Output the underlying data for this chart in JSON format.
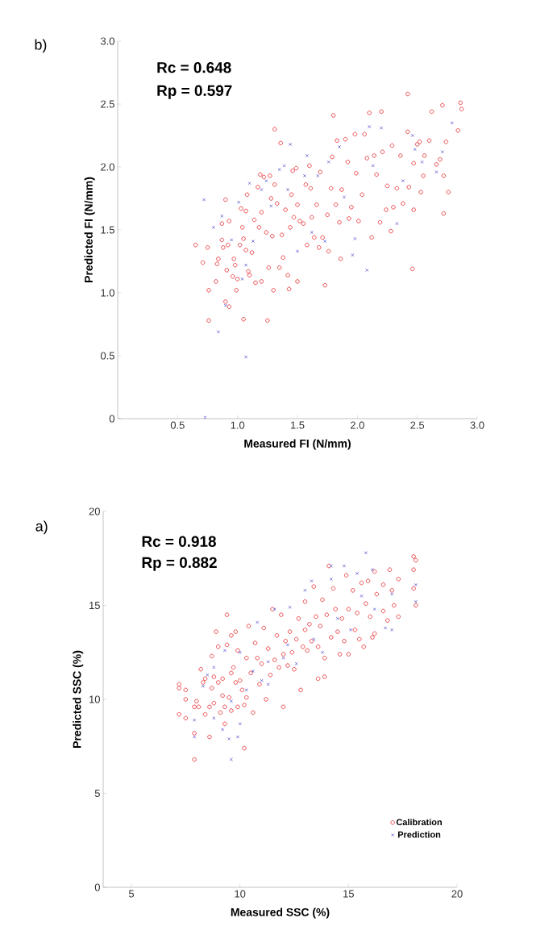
{
  "chart_data": [
    {
      "type": "scatter",
      "title": "b)",
      "xlabel": "Measured FI (N/mm)",
      "ylabel": "Predicted FI (N/mm)",
      "annotations": [
        "Rc = 0.648",
        "Rp = 0.597"
      ],
      "xlim": [
        0,
        3.0
      ],
      "ylim": [
        0,
        3.0
      ],
      "xticks": [
        0.5,
        {
          "value": 1,
          "label": "1.0"
        },
        1.5,
        {
          "value": 2,
          "label": "2.0"
        },
        2.5,
        {
          "value": 3,
          "label": "3.0"
        }
      ],
      "yticks": [
        0,
        0.5,
        {
          "value": 1,
          "label": "1.0"
        },
        1.5,
        {
          "value": 2,
          "label": "2.0"
        },
        2.5,
        {
          "value": 3,
          "label": "3.0"
        }
      ],
      "grid": false,
      "legend": false,
      "series": [
        {
          "color": "#e8383d",
          "marker": "circle",
          "x": [
            0.65,
            0.71,
            0.75,
            0.76,
            0.76,
            0.82,
            0.83,
            0.84,
            0.87,
            0.87,
            0.88,
            0.9,
            0.9,
            0.91,
            0.92,
            0.93,
            0.93,
            0.96,
            0.97,
            0.98,
            0.99,
            1.0,
            1.02,
            1.03,
            1.04,
            1.05,
            1.05,
            1.07,
            1.07,
            1.08,
            1.09,
            1.1,
            1.12,
            1.14,
            1.15,
            1.17,
            1.18,
            1.19,
            1.2,
            1.2,
            1.22,
            1.24,
            1.25,
            1.26,
            1.27,
            1.28,
            1.29,
            1.3,
            1.31,
            1.31,
            1.33,
            1.35,
            1.36,
            1.37,
            1.38,
            1.4,
            1.42,
            1.43,
            1.44,
            1.45,
            1.46,
            1.47,
            1.49,
            1.5,
            1.5,
            1.52,
            1.55,
            1.57,
            1.58,
            1.6,
            1.61,
            1.62,
            1.64,
            1.66,
            1.68,
            1.69,
            1.71,
            1.73,
            1.75,
            1.76,
            1.78,
            1.79,
            1.8,
            1.82,
            1.83,
            1.85,
            1.86,
            1.87,
            1.9,
            1.92,
            1.93,
            1.95,
            1.98,
            1.99,
            2.01,
            2.04,
            2.06,
            2.08,
            2.1,
            2.12,
            2.14,
            2.16,
            2.19,
            2.2,
            2.21,
            2.24,
            2.25,
            2.28,
            2.29,
            2.3,
            2.33,
            2.36,
            2.38,
            2.42,
            2.42,
            2.43,
            2.46,
            2.47,
            2.47,
            2.5,
            2.52,
            2.53,
            2.55,
            2.56,
            2.6,
            2.62,
            2.66,
            2.69,
            2.71,
            2.72,
            2.72,
            2.74,
            2.76,
            2.84,
            2.86,
            2.87
          ],
          "values": [
            1.38,
            1.24,
            1.36,
            1.02,
            0.78,
            1.09,
            1.23,
            1.27,
            1.42,
            1.55,
            1.36,
            0.93,
            1.74,
            1.18,
            1.38,
            0.89,
            1.57,
            1.13,
            1.27,
            1.22,
            1.02,
            1.11,
            1.38,
            1.67,
            1.52,
            0.79,
            1.43,
            1.65,
            1.34,
            1.78,
            1.17,
            1.14,
            1.32,
            1.58,
            1.08,
            1.84,
            1.52,
            1.94,
            1.64,
            1.09,
            1.92,
            1.48,
            0.78,
            1.2,
            1.93,
            1.75,
            1.45,
            1.02,
            2.3,
            1.86,
            1.71,
            1.2,
            2.19,
            1.46,
            1.28,
            1.66,
            1.14,
            1.03,
            1.52,
            1.78,
            1.97,
            1.6,
            1.99,
            1.09,
            1.7,
            1.57,
            1.55,
            1.86,
            1.38,
            2.01,
            1.83,
            1.6,
            1.44,
            1.7,
            1.36,
            1.96,
            1.44,
            1.06,
            1.62,
            1.33,
            1.83,
            2.08,
            2.41,
            1.7,
            2.21,
            1.56,
            1.27,
            1.82,
            2.22,
            2.04,
            1.59,
            1.68,
            2.26,
            1.95,
            1.57,
            1.78,
            2.26,
            2.07,
            2.43,
            1.44,
            2.09,
            1.94,
            1.56,
            2.44,
            2.12,
            1.66,
            1.85,
            1.49,
            2.17,
            1.68,
            1.83,
            2.09,
            1.71,
            2.28,
            2.58,
            1.84,
            1.19,
            1.66,
            2.03,
            2.18,
            2.2,
            1.8,
            1.93,
            2.09,
            2.21,
            2.44,
            2.02,
            2.06,
            2.49,
            1.63,
            1.93,
            2.2,
            1.8,
            2.29,
            2.51,
            2.46
          ]
        },
        {
          "color": "#6b6bd6",
          "marker": "cross",
          "x": [
            0.72,
            0.73,
            0.8,
            0.84,
            0.87,
            0.9,
            0.95,
            1.01,
            1.04,
            1.07,
            1.07,
            1.1,
            1.13,
            1.2,
            1.24,
            1.28,
            1.35,
            1.39,
            1.42,
            1.44,
            1.5,
            1.56,
            1.58,
            1.62,
            1.67,
            1.73,
            1.76,
            1.85,
            1.89,
            1.96,
            1.98,
            2.08,
            2.1,
            2.13,
            2.2,
            2.33,
            2.38,
            2.46,
            2.48,
            2.54,
            2.66,
            2.71,
            2.79
          ],
          "values": [
            1.74,
            0.01,
            1.52,
            0.69,
            1.61,
            0.9,
            1.42,
            1.72,
            1.11,
            0.49,
            1.22,
            1.87,
            1.41,
            1.82,
            1.89,
            1.69,
            1.98,
            2.01,
            1.82,
            2.18,
            1.33,
            1.93,
            2.09,
            1.48,
            1.93,
            1.41,
            2.04,
            2.16,
            1.76,
            1.3,
            1.43,
            1.18,
            2.32,
            2.01,
            2.31,
            1.55,
            1.89,
            2.25,
            2.14,
            2.04,
            1.96,
            2.12,
            2.35
          ]
        }
      ]
    },
    {
      "type": "scatter",
      "title": "a)",
      "xlabel": "Measured SSC (%)",
      "ylabel": "Predicted SSC (%)",
      "annotations": [
        "Rc = 0.918",
        "Rp = 0.882"
      ],
      "xlim": [
        3.7,
        20
      ],
      "ylim": [
        0,
        20
      ],
      "xticks": [
        5,
        10,
        15,
        20
      ],
      "yticks": [
        0,
        5,
        10,
        15,
        20
      ],
      "grid": false,
      "legend": "bottom right",
      "series": [
        {
          "name": "Calibration",
          "color": "#e8383d",
          "marker": "circle",
          "x": [
            7.2,
            7.2,
            7.2,
            7.5,
            7.5,
            7.5,
            7.9,
            7.9,
            7.9,
            8.0,
            8.1,
            8.2,
            8.3,
            8.4,
            8.4,
            8.6,
            8.6,
            8.7,
            8.7,
            8.8,
            8.8,
            8.9,
            9.0,
            9.0,
            9.1,
            9.2,
            9.2,
            9.3,
            9.3,
            9.4,
            9.4,
            9.5,
            9.6,
            9.6,
            9.6,
            9.7,
            9.8,
            9.8,
            9.9,
            9.9,
            10.0,
            10.1,
            10.2,
            10.2,
            10.3,
            10.3,
            10.4,
            10.5,
            10.6,
            10.7,
            10.8,
            10.9,
            11.0,
            11.1,
            11.2,
            11.3,
            11.4,
            11.5,
            11.6,
            11.7,
            11.8,
            11.9,
            12.0,
            12.0,
            12.1,
            12.2,
            12.3,
            12.4,
            12.5,
            12.6,
            12.7,
            12.8,
            12.9,
            13.0,
            13.0,
            13.1,
            13.2,
            13.3,
            13.4,
            13.5,
            13.6,
            13.6,
            13.7,
            13.8,
            13.9,
            13.9,
            14.0,
            14.1,
            14.2,
            14.3,
            14.4,
            14.5,
            14.6,
            14.7,
            14.8,
            14.9,
            15.0,
            15.0,
            15.2,
            15.3,
            15.4,
            15.5,
            15.6,
            15.7,
            15.8,
            15.9,
            16.0,
            16.1,
            16.2,
            16.2,
            16.3,
            16.6,
            16.6,
            16.8,
            16.9,
            17.0,
            17.1,
            17.3,
            17.3,
            18.0,
            18.0,
            18.1,
            18.0,
            18.1
          ],
          "values": [
            10.8,
            10.6,
            9.2,
            10.5,
            10.0,
            9.0,
            9.6,
            8.2,
            6.8,
            9.9,
            9.6,
            11.6,
            10.9,
            11.1,
            9.2,
            8.0,
            9.6,
            12.3,
            10.6,
            11.2,
            9.8,
            13.6,
            12.8,
            10.9,
            9.3,
            10.2,
            11.1,
            8.7,
            9.6,
            14.5,
            12.9,
            10.1,
            11.4,
            13.4,
            9.4,
            11.7,
            13.6,
            10.9,
            9.6,
            12.6,
            11.0,
            10.5,
            9.7,
            7.4,
            10.1,
            12.2,
            13.9,
            11.4,
            9.3,
            13.0,
            12.2,
            10.8,
            11.9,
            13.8,
            10.0,
            12.7,
            11.3,
            14.8,
            12.1,
            13.4,
            11.7,
            14.5,
            12.4,
            9.6,
            13.1,
            11.8,
            13.6,
            12.5,
            11.6,
            13.2,
            14.3,
            10.5,
            12.8,
            13.7,
            15.2,
            12.6,
            14.0,
            13.1,
            16.0,
            14.4,
            11.1,
            12.8,
            13.9,
            15.3,
            12.2,
            11.2,
            14.5,
            17.1,
            13.3,
            15.9,
            14.8,
            13.6,
            12.4,
            14.3,
            13.1,
            16.6,
            14.8,
            12.4,
            15.8,
            13.7,
            14.6,
            13.2,
            16.2,
            12.8,
            15.1,
            16.3,
            14.4,
            13.3,
            13.5,
            16.8,
            15.6,
            14.7,
            16.1,
            14.2,
            16.9,
            15.8,
            15.0,
            16.4,
            14.4,
            17.6,
            16.9,
            17.4,
            15.9,
            15.0
          ]
        },
        {
          "name": "Prediction",
          "color": "#6b6bd6",
          "marker": "cross",
          "x": [
            7.9,
            7.9,
            8.3,
            8.5,
            8.8,
            8.8,
            9.2,
            9.3,
            9.5,
            9.6,
            9.6,
            9.9,
            10.0,
            10.0,
            10.3,
            10.6,
            10.8,
            11.0,
            11.3,
            11.3,
            11.6,
            12.0,
            12.2,
            12.3,
            12.6,
            13.0,
            13.3,
            13.4,
            13.8,
            14.2,
            14.2,
            14.5,
            14.8,
            15.1,
            15.4,
            15.6,
            15.8,
            16.1,
            16.2,
            16.7,
            17.0,
            17.0,
            18.1,
            18.1
          ],
          "values": [
            8.9,
            8.0,
            10.7,
            11.3,
            9.0,
            11.7,
            8.4,
            12.6,
            7.9,
            6.8,
            9.9,
            8.0,
            12.5,
            8.7,
            10.5,
            11.5,
            14.1,
            11.0,
            10.8,
            12.0,
            14.8,
            12.2,
            12.9,
            14.9,
            11.9,
            15.8,
            16.3,
            13.2,
            12.5,
            17.1,
            16.4,
            14.3,
            17.1,
            13.7,
            16.7,
            15.5,
            17.8,
            16.9,
            14.8,
            13.8,
            13.7,
            15.6,
            16.1,
            15.2
          ]
        }
      ]
    }
  ]
}
